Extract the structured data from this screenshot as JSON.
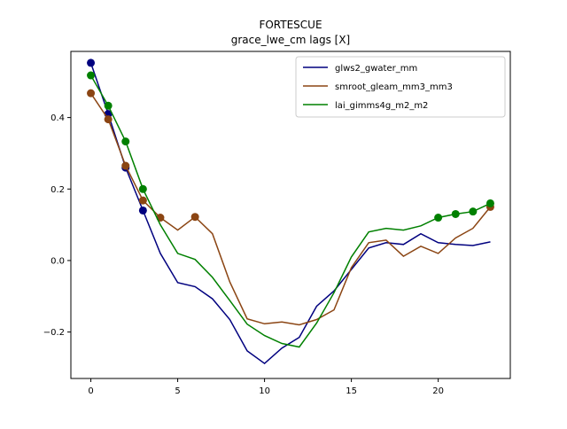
{
  "chart_data": {
    "type": "line",
    "title": "FORTESCUE",
    "subtitle": "grace_lwe_cm lags [X]",
    "xlabel": "",
    "ylabel": "",
    "xlim": [
      -1.15,
      24.15
    ],
    "ylim": [
      -0.33,
      0.585
    ],
    "xticks": [
      0,
      5,
      10,
      15,
      20
    ],
    "yticks": [
      -0.2,
      0.0,
      0.2,
      0.4
    ],
    "ytick_labels": [
      "−0.2",
      "0.0",
      "0.2",
      "0.4"
    ],
    "grid": false,
    "legend_position": "upper right",
    "series": [
      {
        "name": "glws2_gwater_mm",
        "color": "#00007f",
        "x": [
          0,
          1,
          2,
          3,
          4,
          5,
          6,
          7,
          8,
          9,
          10,
          11,
          12,
          13,
          14,
          15,
          16,
          17,
          18,
          19,
          20,
          21,
          22,
          23
        ],
        "values": [
          0.553,
          0.41,
          0.26,
          0.14,
          0.02,
          -0.062,
          -0.073,
          -0.107,
          -0.165,
          -0.253,
          -0.288,
          -0.245,
          -0.215,
          -0.128,
          -0.085,
          -0.025,
          0.035,
          0.05,
          0.045,
          0.075,
          0.05,
          0.045,
          0.042,
          0.052
        ],
        "markers": [
          0,
          1,
          2,
          3
        ]
      },
      {
        "name": "smroot_gleam_mm3_mm3",
        "color": "#8b4513",
        "x": [
          0,
          1,
          2,
          3,
          4,
          5,
          6,
          7,
          8,
          9,
          10,
          11,
          12,
          13,
          14,
          15,
          16,
          17,
          18,
          19,
          20,
          21,
          22,
          23
        ],
        "values": [
          0.468,
          0.395,
          0.265,
          0.168,
          0.12,
          0.085,
          0.122,
          0.075,
          -0.06,
          -0.163,
          -0.177,
          -0.172,
          -0.18,
          -0.165,
          -0.138,
          -0.02,
          0.05,
          0.057,
          0.012,
          0.04,
          0.02,
          0.063,
          0.09,
          0.15
        ],
        "markers": [
          0,
          1,
          2,
          3,
          4,
          6,
          23
        ]
      },
      {
        "name": "lai_gimms4g_m2_m2",
        "color": "#008000",
        "x": [
          0,
          1,
          2,
          3,
          4,
          5,
          6,
          7,
          8,
          9,
          10,
          11,
          12,
          13,
          14,
          15,
          16,
          17,
          18,
          19,
          20,
          21,
          22,
          23
        ],
        "values": [
          0.518,
          0.433,
          0.333,
          0.2,
          0.1,
          0.02,
          0.003,
          -0.047,
          -0.112,
          -0.178,
          -0.21,
          -0.232,
          -0.242,
          -0.175,
          -0.09,
          0.01,
          0.08,
          0.09,
          0.085,
          0.097,
          0.12,
          0.13,
          0.137,
          0.16
        ],
        "markers": [
          0,
          1,
          2,
          3,
          20,
          21,
          22,
          23
        ]
      }
    ]
  }
}
